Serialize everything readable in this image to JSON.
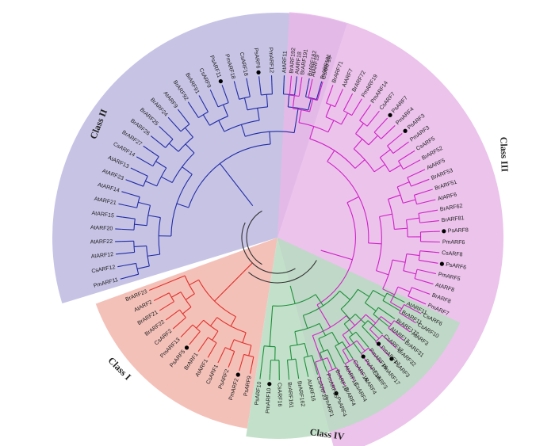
{
  "tree": {
    "marker_color": "#000000",
    "classes": [
      {
        "id": "class-1",
        "label": "Class I",
        "fill": "#f2b6ad",
        "branch": "#e0312b",
        "leaves": [
          {
            "name": "PsARF9",
            "marked": false
          },
          {
            "name": "PmARF2",
            "marked": true
          },
          {
            "name": "PsARF2",
            "marked": false
          },
          {
            "name": "CsARF1",
            "marked": false
          },
          {
            "name": "AtARF1",
            "marked": false
          },
          {
            "name": "BrARF1",
            "marked": false
          },
          {
            "name": "PsARF5",
            "marked": true
          },
          {
            "name": "PmARF13",
            "marked": false
          },
          {
            "name": "CsARF2",
            "marked": false
          },
          {
            "name": "BrARF22",
            "marked": false
          },
          {
            "name": "BrARF21",
            "marked": false
          },
          {
            "name": "AtARF2",
            "marked": false
          },
          {
            "name": "BrARF23",
            "marked": false
          }
        ]
      },
      {
        "id": "class-2",
        "label": "Class II",
        "fill": "#bdb8e0",
        "branch": "#1f2ba5",
        "leaves": [
          {
            "name": "PmARF11",
            "marked": false
          },
          {
            "name": "CsARF12",
            "marked": false
          },
          {
            "name": "AtARF12",
            "marked": false
          },
          {
            "name": "AtARF22",
            "marked": false
          },
          {
            "name": "AtARF20",
            "marked": false
          },
          {
            "name": "AtARF15",
            "marked": false
          },
          {
            "name": "AtARF21",
            "marked": false
          },
          {
            "name": "AtARF14",
            "marked": false
          },
          {
            "name": "AtARF23",
            "marked": false
          },
          {
            "name": "AtARF13",
            "marked": false
          },
          {
            "name": "CsARF14",
            "marked": false
          },
          {
            "name": "BrARF27",
            "marked": false
          },
          {
            "name": "BrARF26",
            "marked": false
          },
          {
            "name": "BrARF25",
            "marked": false
          },
          {
            "name": "BrARF24",
            "marked": false
          },
          {
            "name": "AtARF9",
            "marked": false
          },
          {
            "name": "BrARF92",
            "marked": false
          },
          {
            "name": "BrARF91",
            "marked": false
          },
          {
            "name": "CsARF9",
            "marked": false
          },
          {
            "name": "PsARF11",
            "marked": true
          },
          {
            "name": "PmARF18",
            "marked": false
          },
          {
            "name": "CsARF18",
            "marked": false
          },
          {
            "name": "PsARF6",
            "marked": true
          },
          {
            "name": "PmARF12",
            "marked": false
          },
          {
            "name": "AtARF11",
            "marked": false
          },
          {
            "name": "AtARF18",
            "marked": false
          },
          {
            "name": "BrARF182",
            "marked": false
          },
          {
            "name": "BrARF181",
            "marked": false
          }
        ]
      },
      {
        "id": "class-3",
        "label": "Class III",
        "fill": "#e8b8e8",
        "branch": "#d21fc8",
        "leaves": [
          {
            "name": "BrARF192",
            "marked": false
          },
          {
            "name": "BrARF191",
            "marked": false
          },
          {
            "name": "AtARF19",
            "marked": false
          },
          {
            "name": "CsARF19",
            "marked": false
          },
          {
            "name": "BrARF71",
            "marked": false
          },
          {
            "name": "AtARF7",
            "marked": false
          },
          {
            "name": "BrARF72",
            "marked": false
          },
          {
            "name": "PmARF19",
            "marked": false
          },
          {
            "name": "PmARF14",
            "marked": false
          },
          {
            "name": "CsARF7",
            "marked": false
          },
          {
            "name": "PsARF7",
            "marked": true
          },
          {
            "name": "PmARF4",
            "marked": false
          },
          {
            "name": "PsARF3",
            "marked": true
          },
          {
            "name": "PmARF3",
            "marked": false
          },
          {
            "name": "CsARF5",
            "marked": false
          },
          {
            "name": "BrARF52",
            "marked": false
          },
          {
            "name": "AtARF5",
            "marked": false
          },
          {
            "name": "BrARF53",
            "marked": false
          },
          {
            "name": "BrARF51",
            "marked": false
          },
          {
            "name": "AtARF6",
            "marked": false
          },
          {
            "name": "BrARF62",
            "marked": false
          },
          {
            "name": "BrARF81",
            "marked": false
          },
          {
            "name": "PsARF8",
            "marked": true
          },
          {
            "name": "PmARF6",
            "marked": false
          },
          {
            "name": "CsARF8",
            "marked": false
          },
          {
            "name": "PsARF6",
            "marked": true
          },
          {
            "name": "PmARF5",
            "marked": false
          },
          {
            "name": "AtARF8",
            "marked": false
          },
          {
            "name": "BrARF8",
            "marked": false
          },
          {
            "name": "PmARF7",
            "marked": false
          },
          {
            "name": "CsARF6",
            "marked": false
          },
          {
            "name": "CsARF10",
            "marked": false
          },
          {
            "name": "AtARF3",
            "marked": false
          },
          {
            "name": "BrARF31",
            "marked": false
          },
          {
            "name": "BrARF32",
            "marked": false
          },
          {
            "name": "PsARF3",
            "marked": true
          },
          {
            "name": "PmARF17",
            "marked": false
          },
          {
            "name": "CsARF3",
            "marked": false
          },
          {
            "name": "AtARF4",
            "marked": false
          },
          {
            "name": "CsARF4",
            "marked": false
          },
          {
            "name": "BrARF4",
            "marked": false
          },
          {
            "name": "PsARF4",
            "marked": true
          },
          {
            "name": "PmARF1",
            "marked": false
          }
        ]
      },
      {
        "id": "class-4",
        "label": "Class IV",
        "fill": "#b9dcc1",
        "branch": "#1d8f3a",
        "leaves": [
          {
            "name": "AtARF11",
            "marked": false
          },
          {
            "name": "BrARF11",
            "marked": false
          },
          {
            "name": "BrARF172",
            "marked": false
          },
          {
            "name": "AtARF17",
            "marked": false
          },
          {
            "name": "CsARF17",
            "marked": false
          },
          {
            "name": "PmARF17",
            "marked": true
          },
          {
            "name": "PmARF16",
            "marked": false
          },
          {
            "name": "PsARF16",
            "marked": true
          },
          {
            "name": "CsARF15",
            "marked": false
          },
          {
            "name": "AtARF10",
            "marked": false
          },
          {
            "name": "BrARF10",
            "marked": false
          },
          {
            "name": "PmARF15",
            "marked": false
          },
          {
            "name": "CsARF13",
            "marked": false
          },
          {
            "name": "AtARF16",
            "marked": false
          },
          {
            "name": "BrARF162",
            "marked": false
          },
          {
            "name": "BrARF161",
            "marked": false
          },
          {
            "name": "CsARF16",
            "marked": false
          },
          {
            "name": "PmARF10",
            "marked": true
          },
          {
            "name": "PsARF10",
            "marked": false
          }
        ]
      }
    ]
  }
}
